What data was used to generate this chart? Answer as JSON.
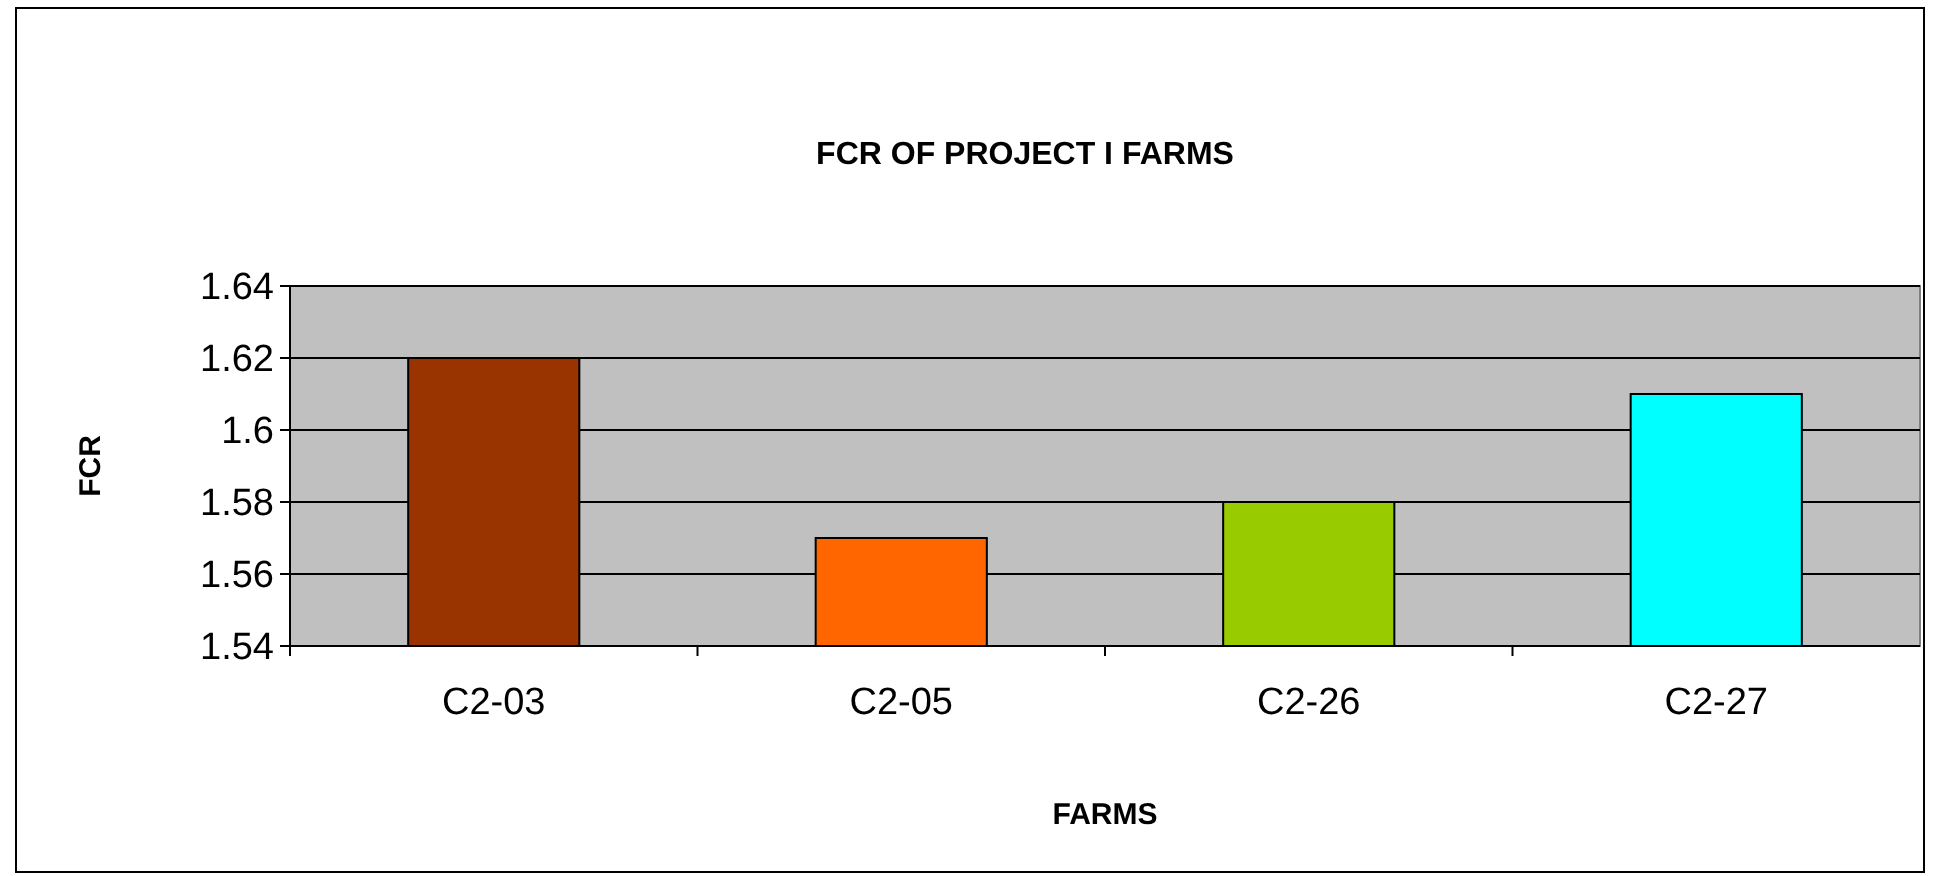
{
  "chart_data": {
    "type": "bar",
    "title": "FCR OF PROJECT I FARMS",
    "xlabel": "FARMS",
    "ylabel": "FCR",
    "categories": [
      "C2-03",
      "C2-05",
      "C2-26",
      "C2-27"
    ],
    "values": [
      1.62,
      1.57,
      1.58,
      1.61
    ],
    "colors": [
      "#993300",
      "#ff6600",
      "#99cc00",
      "#00ffff"
    ],
    "ylim": [
      1.54,
      1.64
    ],
    "yticks": [
      1.54,
      1.56,
      1.58,
      1.6,
      1.62,
      1.64
    ],
    "grid": "y"
  }
}
